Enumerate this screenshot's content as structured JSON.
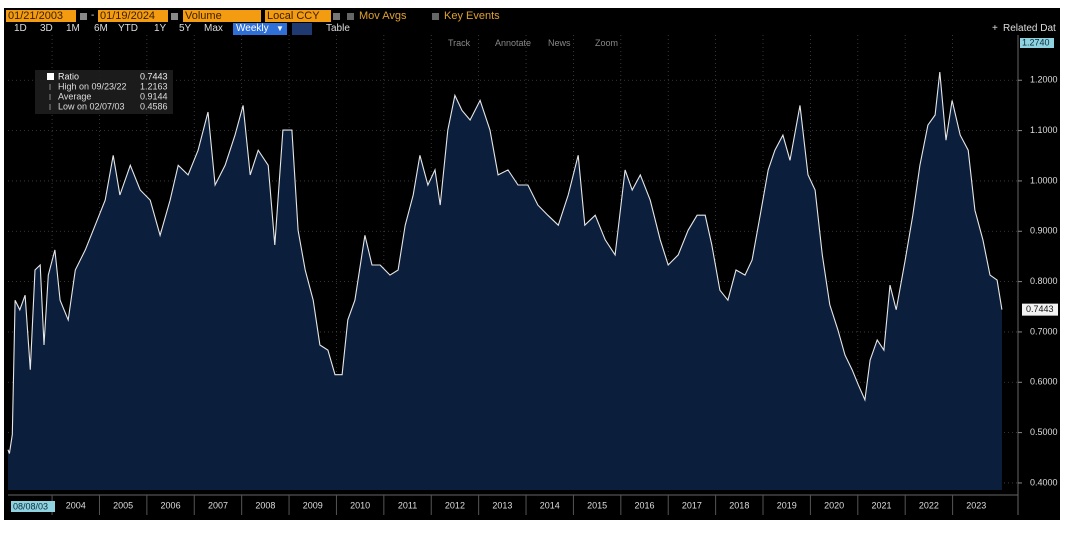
{
  "toolbar": {
    "start_date": "01/21/2003",
    "end_date": "01/19/2024",
    "field": "Volume",
    "currency": "Local CCY",
    "mov_avgs": "Mov Avgs",
    "key_events": "Key Events",
    "periods": [
      "1D",
      "3D",
      "1M",
      "6M",
      "YTD",
      "1Y",
      "5Y",
      "Max"
    ],
    "frequency": "Weekly",
    "table": "Table",
    "related": "Related Dat"
  },
  "chart_tools": [
    "Track",
    "Annotate",
    "News",
    "Zoom"
  ],
  "chart_data": {
    "type": "area",
    "legend": {
      "name": "Ratio",
      "value": 0.7443,
      "stats": [
        {
          "label": "High on 09/23/22",
          "value": 1.2163
        },
        {
          "label": "Average",
          "value": 0.9144
        },
        {
          "label": "Low on 02/07/03",
          "value": 0.4586
        }
      ]
    },
    "x": [
      2003.07,
      2003.1,
      2003.16,
      2003.22,
      2003.32,
      2003.43,
      2003.54,
      2003.64,
      2003.75,
      2003.83,
      2003.92,
      2004.06,
      2004.17,
      2004.34,
      2004.49,
      2004.7,
      2004.91,
      2005.12,
      2005.29,
      2005.43,
      2005.65,
      2005.86,
      2006.07,
      2006.28,
      2006.49,
      2006.66,
      2006.87,
      2007.08,
      2007.29,
      2007.44,
      2007.65,
      2007.86,
      2008.03,
      2008.18,
      2008.35,
      2008.56,
      2008.7,
      2008.87,
      2009.06,
      2009.19,
      2009.34,
      2009.51,
      2009.65,
      2009.82,
      2009.97,
      2010.12,
      2010.24,
      2010.39,
      2010.6,
      2010.75,
      2010.92,
      2011.13,
      2011.3,
      2011.45,
      2011.62,
      2011.76,
      2011.93,
      2012.08,
      2012.19,
      2012.35,
      2012.5,
      2012.65,
      2012.82,
      2013.03,
      2013.24,
      2013.41,
      2013.62,
      2013.83,
      2014.04,
      2014.25,
      2014.46,
      2014.68,
      2014.89,
      2015.1,
      2015.24,
      2015.46,
      2015.67,
      2015.88,
      2016.09,
      2016.24,
      2016.41,
      2016.62,
      2016.83,
      2017.0,
      2017.21,
      2017.42,
      2017.61,
      2017.78,
      2017.92,
      2018.09,
      2018.26,
      2018.43,
      2018.62,
      2018.77,
      2018.94,
      2019.11,
      2019.25,
      2019.42,
      2019.57,
      2019.78,
      2019.95,
      2020.1,
      2020.25,
      2020.41,
      2020.58,
      2020.73,
      2020.88,
      2021.01,
      2021.15,
      2021.26,
      2021.41,
      2021.55,
      2021.68,
      2021.81,
      2022.0,
      2022.16,
      2022.31,
      2022.48,
      2022.63,
      2022.73,
      2022.86,
      2022.99,
      2023.16,
      2023.33,
      2023.47,
      2023.64,
      2023.79,
      2023.94,
      2024.04
    ],
    "series": [
      {
        "name": "Ratio",
        "color": "#e6e6e6",
        "fill": "#0b1f3d",
        "values": [
          0.466,
          0.4586,
          0.496,
          0.763,
          0.744,
          0.773,
          0.625,
          0.823,
          0.833,
          0.674,
          0.813,
          0.863,
          0.763,
          0.724,
          0.823,
          0.863,
          0.912,
          0.962,
          1.051,
          0.972,
          1.031,
          0.982,
          0.962,
          0.892,
          0.962,
          1.031,
          1.012,
          1.061,
          1.137,
          0.992,
          1.031,
          1.091,
          1.15,
          1.012,
          1.061,
          1.031,
          0.873,
          1.101,
          1.101,
          0.902,
          0.823,
          0.763,
          0.674,
          0.664,
          0.615,
          0.615,
          0.724,
          0.763,
          0.892,
          0.833,
          0.833,
          0.813,
          0.823,
          0.912,
          0.972,
          1.051,
          0.992,
          1.022,
          0.952,
          1.101,
          1.17,
          1.14,
          1.121,
          1.16,
          1.101,
          1.012,
          1.022,
          0.992,
          0.992,
          0.952,
          0.932,
          0.912,
          0.972,
          1.051,
          0.912,
          0.932,
          0.883,
          0.853,
          1.022,
          0.982,
          1.012,
          0.962,
          0.883,
          0.833,
          0.853,
          0.902,
          0.932,
          0.932,
          0.873,
          0.783,
          0.763,
          0.823,
          0.813,
          0.843,
          0.932,
          1.022,
          1.061,
          1.091,
          1.041,
          1.15,
          1.012,
          0.982,
          0.853,
          0.754,
          0.704,
          0.654,
          0.625,
          0.595,
          0.565,
          0.644,
          0.684,
          0.664,
          0.793,
          0.744,
          0.843,
          0.932,
          1.031,
          1.111,
          1.131,
          1.2163,
          1.081,
          1.16,
          1.091,
          1.061,
          0.942,
          0.883,
          0.813,
          0.803,
          0.7443
        ]
      }
    ],
    "xlim": [
      2003.07,
      2024.38
    ],
    "xticks": [
      2004,
      2005,
      2006,
      2007,
      2008,
      2009,
      2010,
      2011,
      2012,
      2013,
      2014,
      2015,
      2016,
      2017,
      2018,
      2019,
      2020,
      2021,
      2022,
      2023
    ],
    "x_start": {
      "value": 2003.6,
      "label": "08/08/03"
    },
    "ylim": [
      0.386,
      1.274
    ],
    "y_top": {
      "value": 1.274,
      "label": "1.2740"
    },
    "yticks": [
      {
        "value": 0.4,
        "label": "0.4000"
      },
      {
        "value": 0.5,
        "label": "0.5000"
      },
      {
        "value": 0.6,
        "label": "0.6000"
      },
      {
        "value": 0.7,
        "label": "0.7000"
      },
      {
        "value": 0.8,
        "label": "0.8000"
      },
      {
        "value": 0.9,
        "label": "0.9000"
      },
      {
        "value": 1.0,
        "label": "1.0000"
      },
      {
        "value": 1.1,
        "label": "1.1000"
      },
      {
        "value": 1.2,
        "label": "1.2000"
      }
    ],
    "last_value": {
      "value": 0.7443,
      "label": "0.7443"
    },
    "grid": true,
    "axis_side": "right"
  }
}
